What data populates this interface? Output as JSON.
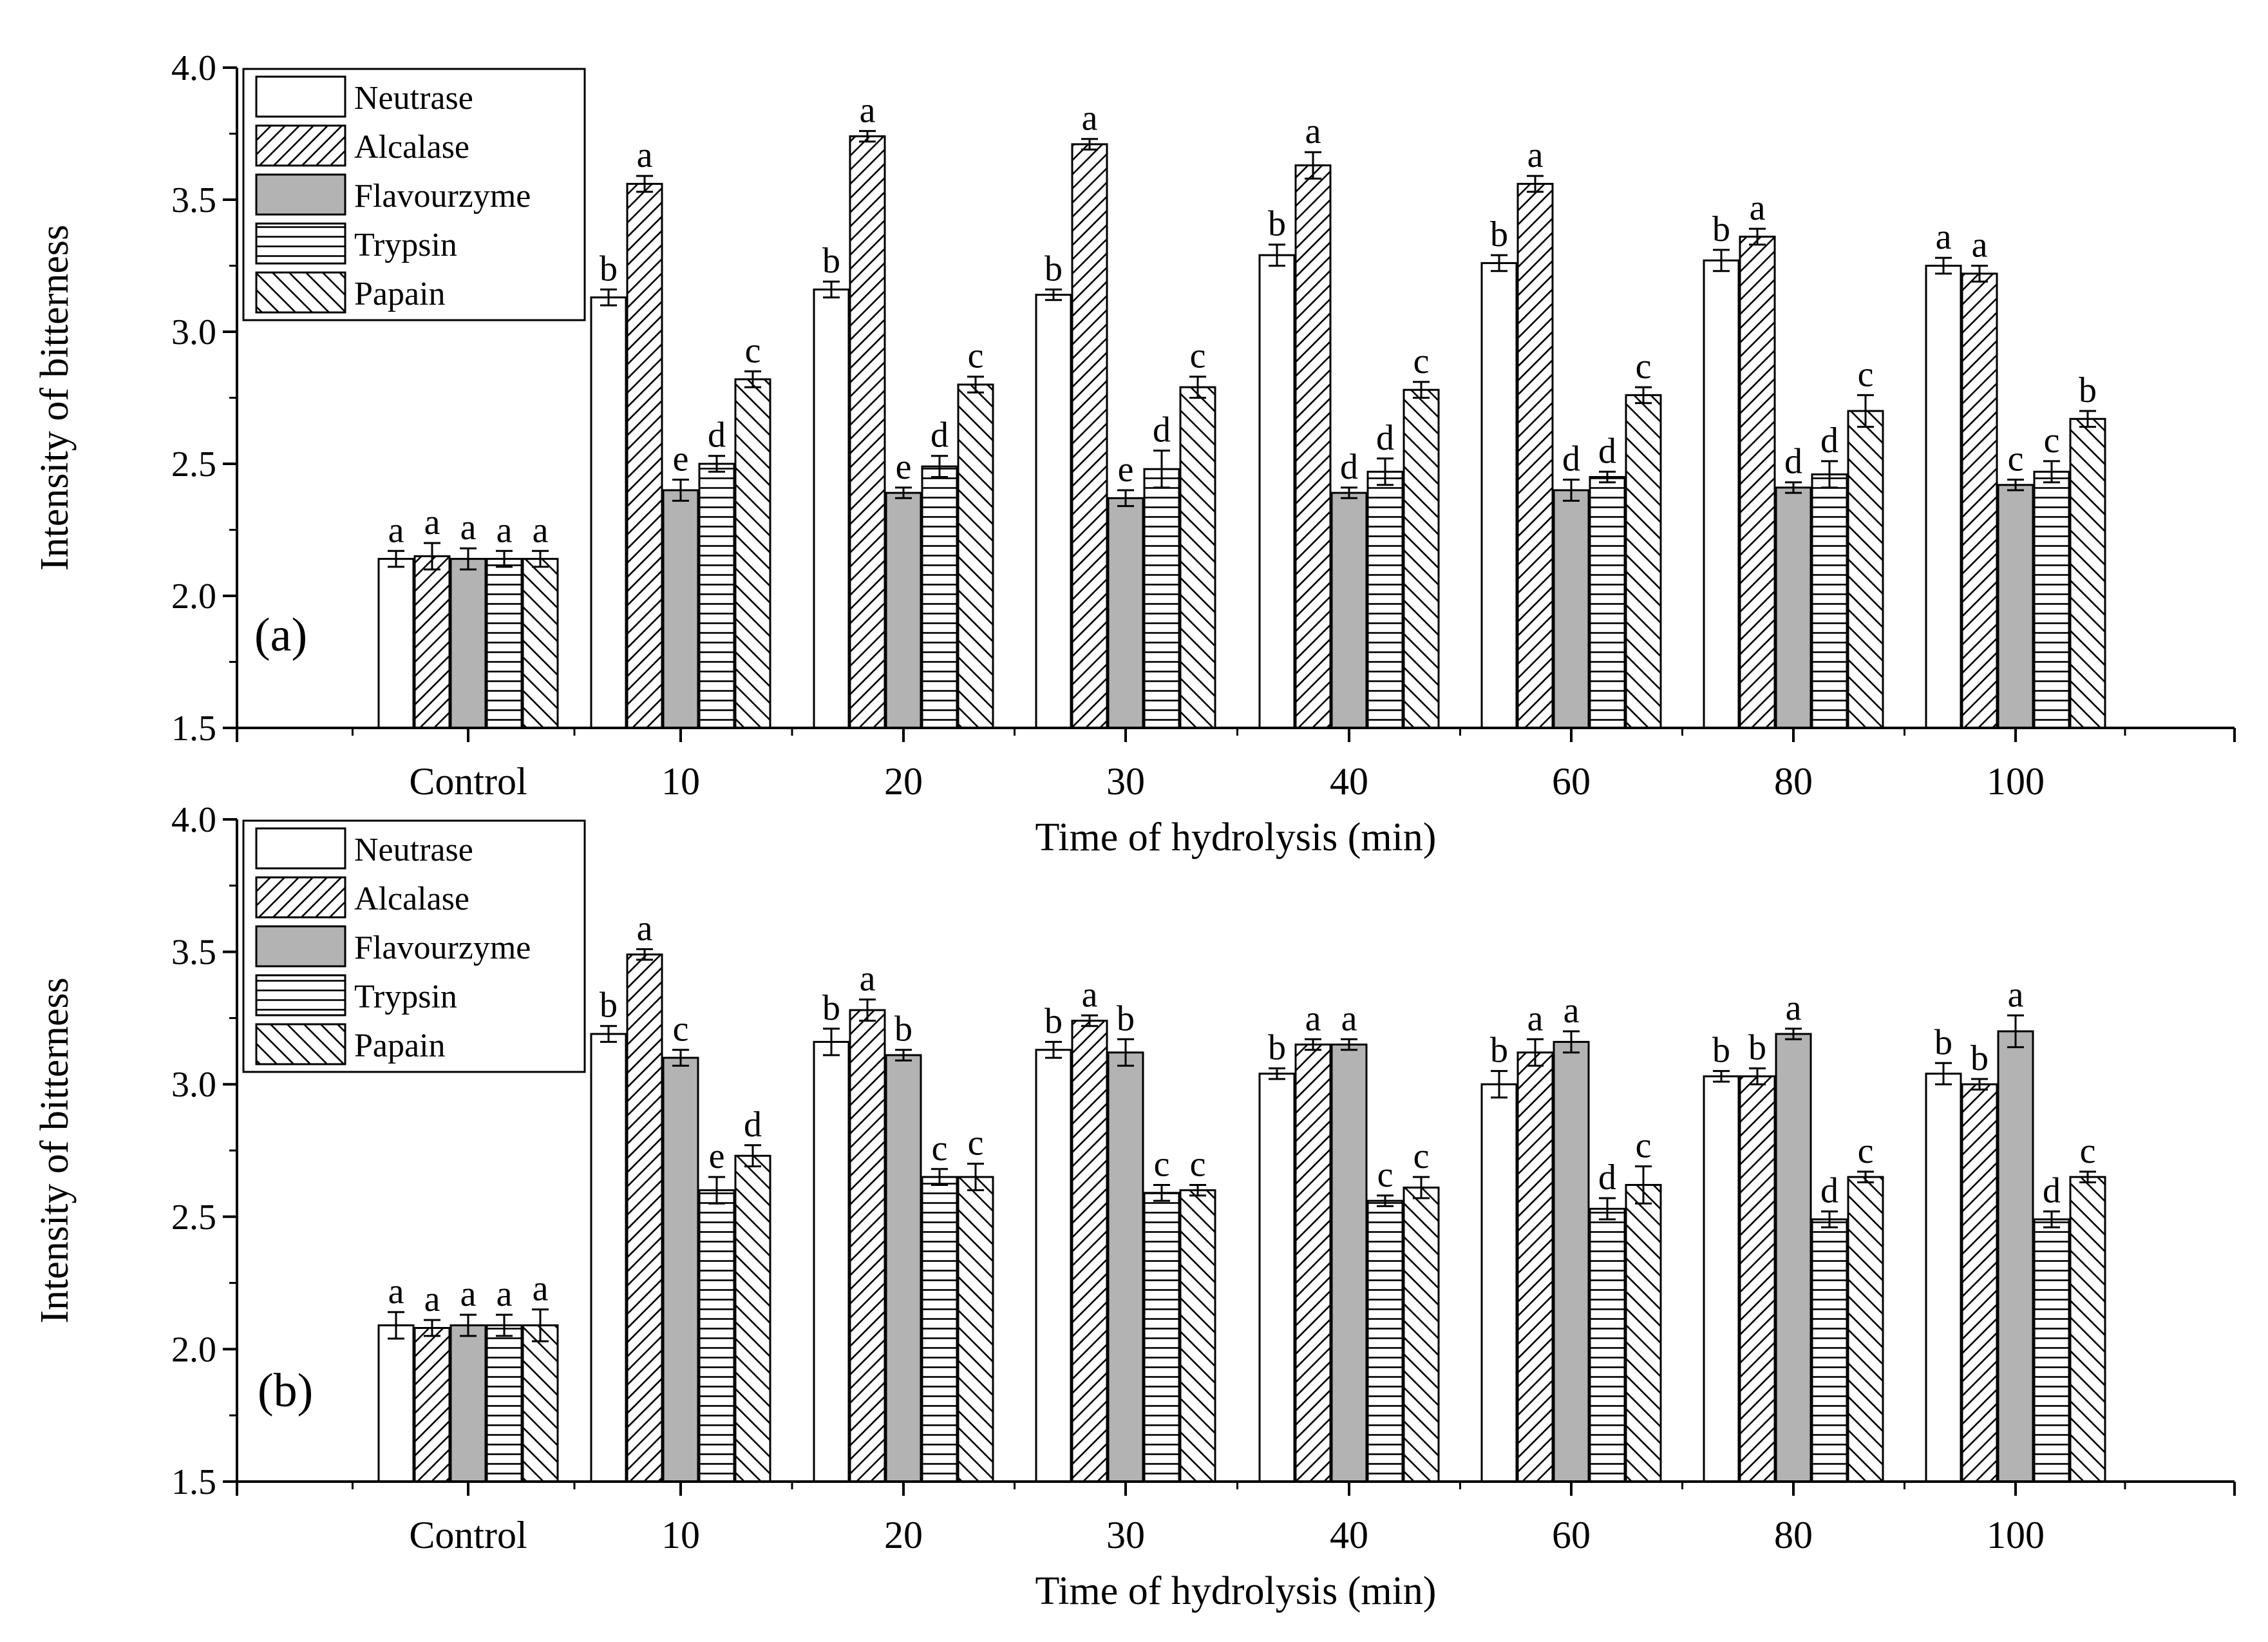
{
  "figure": {
    "colors": {
      "axis": "#000000",
      "flavourzyme": "#b3b3b3",
      "open": "#ffffff"
    }
  },
  "chart_data": [
    {
      "type": "bar",
      "panel_label": "(a)",
      "xlabel": "Time of hydrolysis (min)",
      "ylabel": "Intensity of bitterness",
      "ylim": [
        1.5,
        4.0
      ],
      "yticks": [
        "1.5",
        "2.0",
        "2.5",
        "3.0",
        "3.5",
        "4.0"
      ],
      "categories": [
        "Control",
        "10",
        "20",
        "30",
        "40",
        "60",
        "80",
        "100"
      ],
      "legend_position": "top-left",
      "series": [
        {
          "name": "Neutrase",
          "pattern": "none",
          "values": [
            2.14,
            3.13,
            3.16,
            3.14,
            3.29,
            3.26,
            3.27,
            3.25
          ],
          "errors": [
            0.03,
            0.03,
            0.03,
            0.02,
            0.04,
            0.03,
            0.04,
            0.03
          ],
          "letters": [
            "a",
            "b",
            "b",
            "b",
            "b",
            "b",
            "b",
            "a"
          ]
        },
        {
          "name": "Alcalase",
          "pattern": "diag-right",
          "values": [
            2.15,
            3.56,
            3.74,
            3.71,
            3.63,
            3.56,
            3.36,
            3.22
          ],
          "errors": [
            0.05,
            0.03,
            0.02,
            0.02,
            0.05,
            0.03,
            0.03,
            0.03
          ],
          "letters": [
            "a",
            "a",
            "a",
            "a",
            "a",
            "a",
            "a",
            "a"
          ]
        },
        {
          "name": "Flavourzyme",
          "pattern": "solid-gray",
          "values": [
            2.14,
            2.4,
            2.39,
            2.37,
            2.39,
            2.4,
            2.41,
            2.42
          ],
          "errors": [
            0.04,
            0.04,
            0.02,
            0.03,
            0.02,
            0.04,
            0.02,
            0.02
          ],
          "letters": [
            "a",
            "e",
            "e",
            "e",
            "d",
            "d",
            "d",
            "c"
          ]
        },
        {
          "name": "Trypsin",
          "pattern": "horizontal",
          "values": [
            2.14,
            2.5,
            2.49,
            2.48,
            2.47,
            2.45,
            2.46,
            2.47
          ],
          "errors": [
            0.03,
            0.03,
            0.04,
            0.07,
            0.05,
            0.02,
            0.05,
            0.04
          ],
          "letters": [
            "a",
            "d",
            "d",
            "d",
            "d",
            "d",
            "d",
            "c"
          ]
        },
        {
          "name": "Papain",
          "pattern": "diag-left",
          "values": [
            2.14,
            2.82,
            2.8,
            2.79,
            2.78,
            2.76,
            2.7,
            2.67
          ],
          "errors": [
            0.03,
            0.03,
            0.03,
            0.04,
            0.03,
            0.03,
            0.06,
            0.03
          ],
          "letters": [
            "a",
            "c",
            "c",
            "c",
            "c",
            "c",
            "c",
            "b"
          ]
        }
      ]
    },
    {
      "type": "bar",
      "panel_label": "(b)",
      "xlabel": "Time of hydrolysis (min)",
      "ylabel": "Intensity of bitterness",
      "ylim": [
        1.5,
        4.0
      ],
      "yticks": [
        "1.5",
        "2.0",
        "2.5",
        "3.0",
        "3.5",
        "4.0"
      ],
      "categories": [
        "Control",
        "10",
        "20",
        "30",
        "40",
        "60",
        "80",
        "100"
      ],
      "legend_position": "top-left",
      "series": [
        {
          "name": "Neutrase",
          "pattern": "none",
          "values": [
            2.09,
            3.19,
            3.16,
            3.13,
            3.04,
            3.0,
            3.03,
            3.04
          ],
          "errors": [
            0.05,
            0.03,
            0.05,
            0.03,
            0.02,
            0.05,
            0.02,
            0.04
          ],
          "letters": [
            "a",
            "b",
            "b",
            "b",
            "b",
            "b",
            "b",
            "b"
          ]
        },
        {
          "name": "Alcalase",
          "pattern": "diag-right",
          "values": [
            2.08,
            3.49,
            3.28,
            3.24,
            3.15,
            3.12,
            3.03,
            3.0
          ],
          "errors": [
            0.03,
            0.02,
            0.04,
            0.02,
            0.02,
            0.05,
            0.03,
            0.02
          ],
          "letters": [
            "a",
            "a",
            "a",
            "a",
            "a",
            "a",
            "b",
            "b"
          ]
        },
        {
          "name": "Flavourzyme",
          "pattern": "solid-gray",
          "values": [
            2.09,
            3.1,
            3.11,
            3.12,
            3.15,
            3.16,
            3.19,
            3.2
          ],
          "errors": [
            0.04,
            0.03,
            0.02,
            0.05,
            0.02,
            0.04,
            0.02,
            0.06
          ],
          "letters": [
            "a",
            "c",
            "b",
            "b",
            "a",
            "a",
            "a",
            "a"
          ]
        },
        {
          "name": "Trypsin",
          "pattern": "horizontal",
          "values": [
            2.09,
            2.6,
            2.65,
            2.59,
            2.56,
            2.53,
            2.49,
            2.49
          ],
          "errors": [
            0.04,
            0.05,
            0.03,
            0.03,
            0.02,
            0.04,
            0.03,
            0.03
          ],
          "letters": [
            "a",
            "e",
            "c",
            "c",
            "c",
            "d",
            "d",
            "d"
          ]
        },
        {
          "name": "Papain",
          "pattern": "diag-left",
          "values": [
            2.09,
            2.73,
            2.65,
            2.6,
            2.61,
            2.62,
            2.65,
            2.65
          ],
          "errors": [
            0.06,
            0.04,
            0.05,
            0.02,
            0.04,
            0.07,
            0.02,
            0.02
          ],
          "letters": [
            "a",
            "d",
            "c",
            "c",
            "c",
            "c",
            "c",
            "c"
          ]
        }
      ]
    }
  ]
}
